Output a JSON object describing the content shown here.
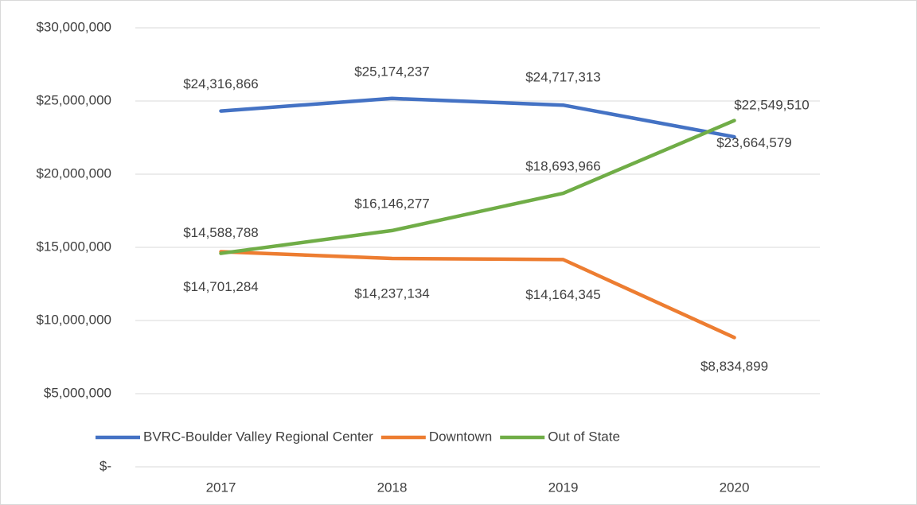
{
  "chart_data": {
    "type": "line",
    "categories": [
      "2017",
      "2018",
      "2019",
      "2020"
    ],
    "series": [
      {
        "name": "BVRC-Boulder Valley Regional Center",
        "color": "#4472c4",
        "values": [
          24316866,
          25174237,
          24717313,
          22549510
        ],
        "value_labels": [
          "$24,316,866",
          "$25,174,237",
          "$24,717,313",
          "$22,549,510"
        ]
      },
      {
        "name": "Downtown",
        "color": "#ed7d31",
        "values": [
          14701284,
          14237134,
          14164345,
          8834899
        ],
        "value_labels": [
          "$14,701,284",
          "$14,237,134",
          "$14,164,345",
          "$8,834,899"
        ]
      },
      {
        "name": "Out of State",
        "color": "#70ad47",
        "values": [
          14588788,
          16146277,
          18693966,
          23664579
        ],
        "value_labels": [
          "$14,588,788",
          "$16,146,277",
          "$18,693,966",
          "$23,664,579"
        ]
      }
    ],
    "ylim": [
      0,
      30000000
    ],
    "yticks": [
      {
        "value": 0,
        "label": "$-"
      },
      {
        "value": 5000000,
        "label": "$5,000,000"
      },
      {
        "value": 10000000,
        "label": "$10,000,000"
      },
      {
        "value": 15000000,
        "label": "$15,000,000"
      },
      {
        "value": 20000000,
        "label": "$20,000,000"
      },
      {
        "value": 25000000,
        "label": "$25,000,000"
      },
      {
        "value": 30000000,
        "label": "$30,000,000"
      }
    ],
    "grid": true,
    "legend": "bottom"
  }
}
